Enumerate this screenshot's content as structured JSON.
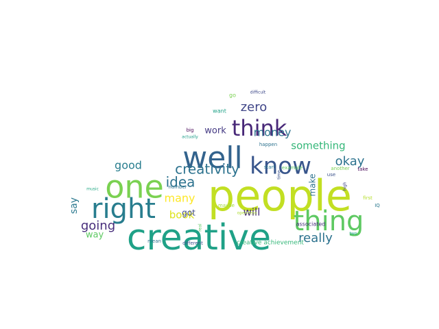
{
  "words": [
    {
      "text": "people",
      "color": "#c2df23",
      "vertical": false
    },
    {
      "text": "creative",
      "color": "#1fa187",
      "vertical": false
    },
    {
      "text": "well",
      "color": "#33638d",
      "vertical": false
    },
    {
      "text": "one",
      "color": "#7ad151",
      "vertical": false
    },
    {
      "text": "right",
      "color": "#287d8e",
      "vertical": false
    },
    {
      "text": "thing",
      "color": "#5ec962",
      "vertical": false
    },
    {
      "text": "know",
      "color": "#39568c",
      "vertical": false
    },
    {
      "text": "think",
      "color": "#482878",
      "vertical": false
    },
    {
      "text": "creativity",
      "color": "#2c728e",
      "vertical": false
    },
    {
      "text": "idea",
      "color": "#2c728e",
      "vertical": false
    },
    {
      "text": "okay",
      "color": "#2c728e",
      "vertical": false
    },
    {
      "text": "zero",
      "color": "#404688",
      "vertical": false
    },
    {
      "text": "money",
      "color": "#2c728e",
      "vertical": false
    },
    {
      "text": "really",
      "color": "#2c728e",
      "vertical": false
    },
    {
      "text": "something",
      "color": "#35b779",
      "vertical": false
    },
    {
      "text": "going",
      "color": "#472d7b",
      "vertical": false
    },
    {
      "text": "good",
      "color": "#287d8e",
      "vertical": false
    },
    {
      "text": "many",
      "color": "#fde725",
      "vertical": false
    },
    {
      "text": "book",
      "color": "#dde318",
      "vertical": false
    },
    {
      "text": "work",
      "color": "#443983",
      "vertical": false
    },
    {
      "text": "will",
      "color": "#472d7b",
      "vertical": false
    },
    {
      "text": "got",
      "color": "#3e4989",
      "vertical": false
    },
    {
      "text": "way",
      "color": "#5ec962",
      "vertical": false
    },
    {
      "text": "say",
      "color": "#2a788e",
      "vertical": true
    },
    {
      "text": "make",
      "color": "#2c728e",
      "vertical": true
    },
    {
      "text": "creative achievement",
      "color": "#35b779",
      "vertical": false
    },
    {
      "text": "associated",
      "color": "#472d7b",
      "vertical": false
    },
    {
      "text": "different",
      "color": "#3b528b",
      "vertical": false
    },
    {
      "text": "mean",
      "color": "#2c728e",
      "vertical": false
    },
    {
      "text": "number",
      "color": "#2c728e",
      "vertical": false
    },
    {
      "text": "happen",
      "color": "#2c728e",
      "vertical": false
    },
    {
      "text": "example",
      "color": "#5ec962",
      "vertical": false
    },
    {
      "text": "another",
      "color": "#7ad151",
      "vertical": false
    },
    {
      "text": "start",
      "color": "#2a788e",
      "vertical": false
    },
    {
      "text": "want",
      "color": "#1fa187",
      "vertical": false
    },
    {
      "text": "big",
      "color": "#440154",
      "vertical": false
    },
    {
      "text": "actually",
      "color": "#1f9e89",
      "vertical": false
    },
    {
      "text": "go",
      "color": "#7ad151",
      "vertical": false
    },
    {
      "text": "difficult",
      "color": "#3e4989",
      "vertical": false
    },
    {
      "text": "use",
      "color": "#3b528b",
      "vertical": false
    },
    {
      "text": "take",
      "color": "#440154",
      "vertical": false
    },
    {
      "text": "high",
      "color": "#404688",
      "vertical": true
    },
    {
      "text": "first",
      "color": "#b5de2b",
      "vertical": false
    },
    {
      "text": "IQ",
      "color": "#2a788e",
      "vertical": false
    },
    {
      "text": "two",
      "color": "#1f9e89",
      "vertical": false
    },
    {
      "text": "music",
      "color": "#22a884",
      "vertical": false
    },
    {
      "text": "maybe",
      "color": "#a0da39",
      "vertical": false
    },
    {
      "text": "openness",
      "color": "#addc30",
      "vertical": false
    },
    {
      "text": "time",
      "color": "#3b528b",
      "vertical": true
    },
    {
      "text": "real",
      "color": "#5ec962",
      "vertical": true
    }
  ]
}
